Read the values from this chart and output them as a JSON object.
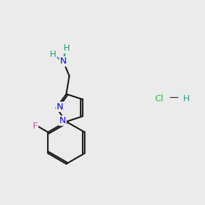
{
  "bg_color": "#ebebeb",
  "bond_color": "#1a1a1a",
  "N_color": "#0000ee",
  "H_color": "#1a9980",
  "F_color": "#cc44cc",
  "Cl_color": "#33bb33",
  "line_width": 1.6,
  "figsize": [
    3.0,
    3.0
  ],
  "dpi": 100,
  "xlim": [
    0,
    10
  ],
  "ylim": [
    0,
    10
  ],
  "HCl_x": 7.8,
  "HCl_y": 5.2
}
